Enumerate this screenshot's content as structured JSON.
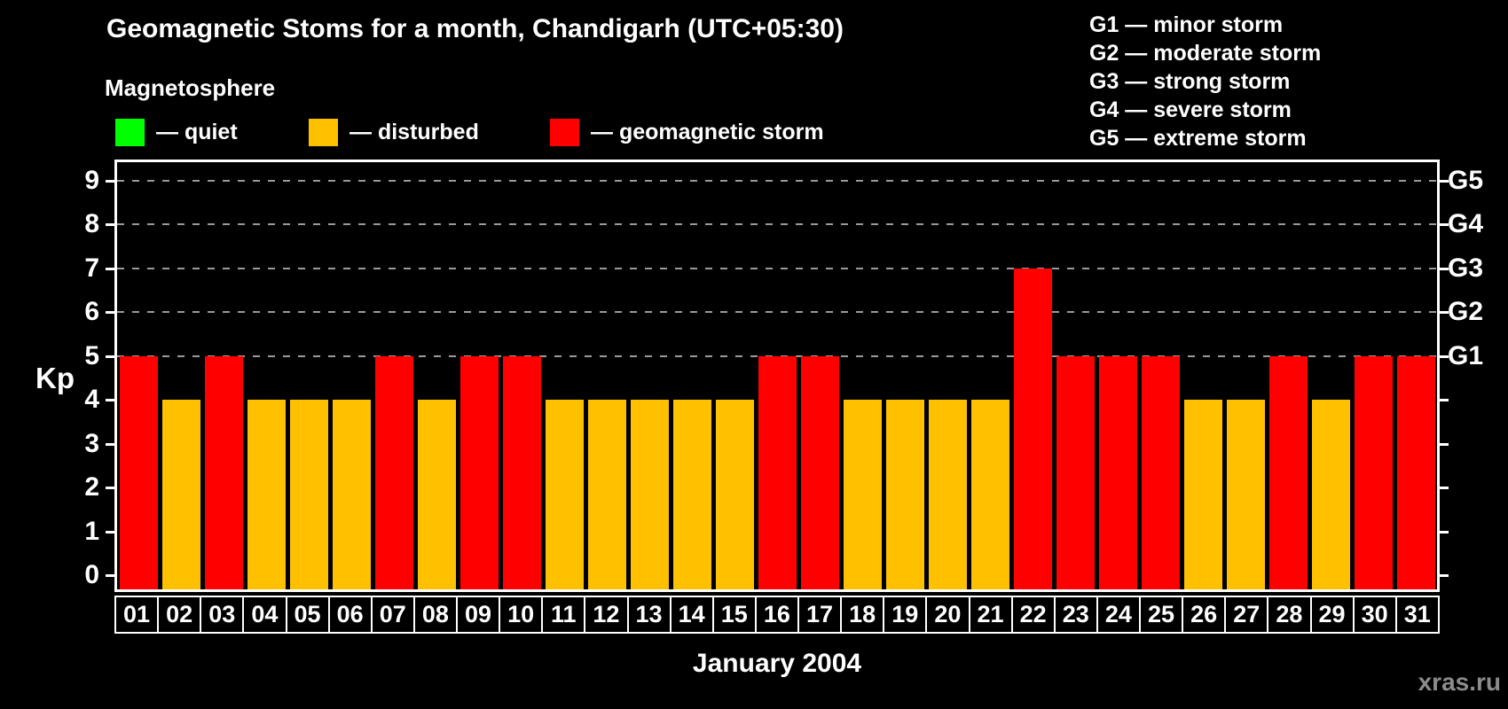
{
  "title": "Geomagnetic Stoms for a month, Chandigarh (UTC+05:30)",
  "legend": {
    "heading": "Magnetosphere",
    "items": [
      {
        "name": "quiet",
        "label": "— quiet",
        "color": "#00ff00"
      },
      {
        "name": "disturbed",
        "label": "— disturbed",
        "color": "#ffc000"
      },
      {
        "name": "storm",
        "label": "— geomagnetic storm",
        "color": "#ff0000"
      }
    ]
  },
  "g_scale_legend": [
    "G1 — minor storm",
    "G2 — moderate storm",
    "G3 — strong storm",
    "G4 — severe storm",
    "G5 — extreme storm"
  ],
  "watermark": "xras.ru",
  "chart_data": {
    "type": "bar",
    "title": "Geomagnetic Stoms for a month, Chandigarh (UTC+05:30)",
    "xlabel": "January 2004",
    "ylabel": "Kp",
    "ylim": [
      0,
      9
    ],
    "y_ticks": [
      0,
      1,
      2,
      3,
      4,
      5,
      6,
      7,
      8,
      9
    ],
    "gridline_values": [
      5,
      6,
      7,
      8,
      9
    ],
    "grid": "horizontal dashed gray lines at Kp 5 through 9",
    "legend_position": "top",
    "right_axis_labels": {
      "5": "G1",
      "6": "G2",
      "7": "G3",
      "8": "G4",
      "9": "G5"
    },
    "categories": [
      "01",
      "02",
      "03",
      "04",
      "05",
      "06",
      "07",
      "08",
      "09",
      "10",
      "11",
      "12",
      "13",
      "14",
      "15",
      "16",
      "17",
      "18",
      "19",
      "20",
      "21",
      "22",
      "23",
      "24",
      "25",
      "26",
      "27",
      "28",
      "29",
      "30",
      "31"
    ],
    "values": [
      5,
      4,
      5,
      4,
      4,
      4,
      5,
      4,
      5,
      5,
      4,
      4,
      4,
      4,
      4,
      5,
      5,
      4,
      4,
      4,
      4,
      7,
      5,
      5,
      5,
      4,
      4,
      5,
      4,
      5,
      5
    ],
    "statuses": [
      "storm",
      "disturbed",
      "storm",
      "disturbed",
      "disturbed",
      "disturbed",
      "storm",
      "disturbed",
      "storm",
      "storm",
      "disturbed",
      "disturbed",
      "disturbed",
      "disturbed",
      "disturbed",
      "storm",
      "storm",
      "disturbed",
      "disturbed",
      "disturbed",
      "disturbed",
      "storm",
      "storm",
      "storm",
      "storm",
      "disturbed",
      "disturbed",
      "storm",
      "disturbed",
      "storm",
      "storm"
    ],
    "status_colors": {
      "quiet": "#00ff00",
      "disturbed": "#ffc000",
      "storm": "#ff0000"
    }
  }
}
